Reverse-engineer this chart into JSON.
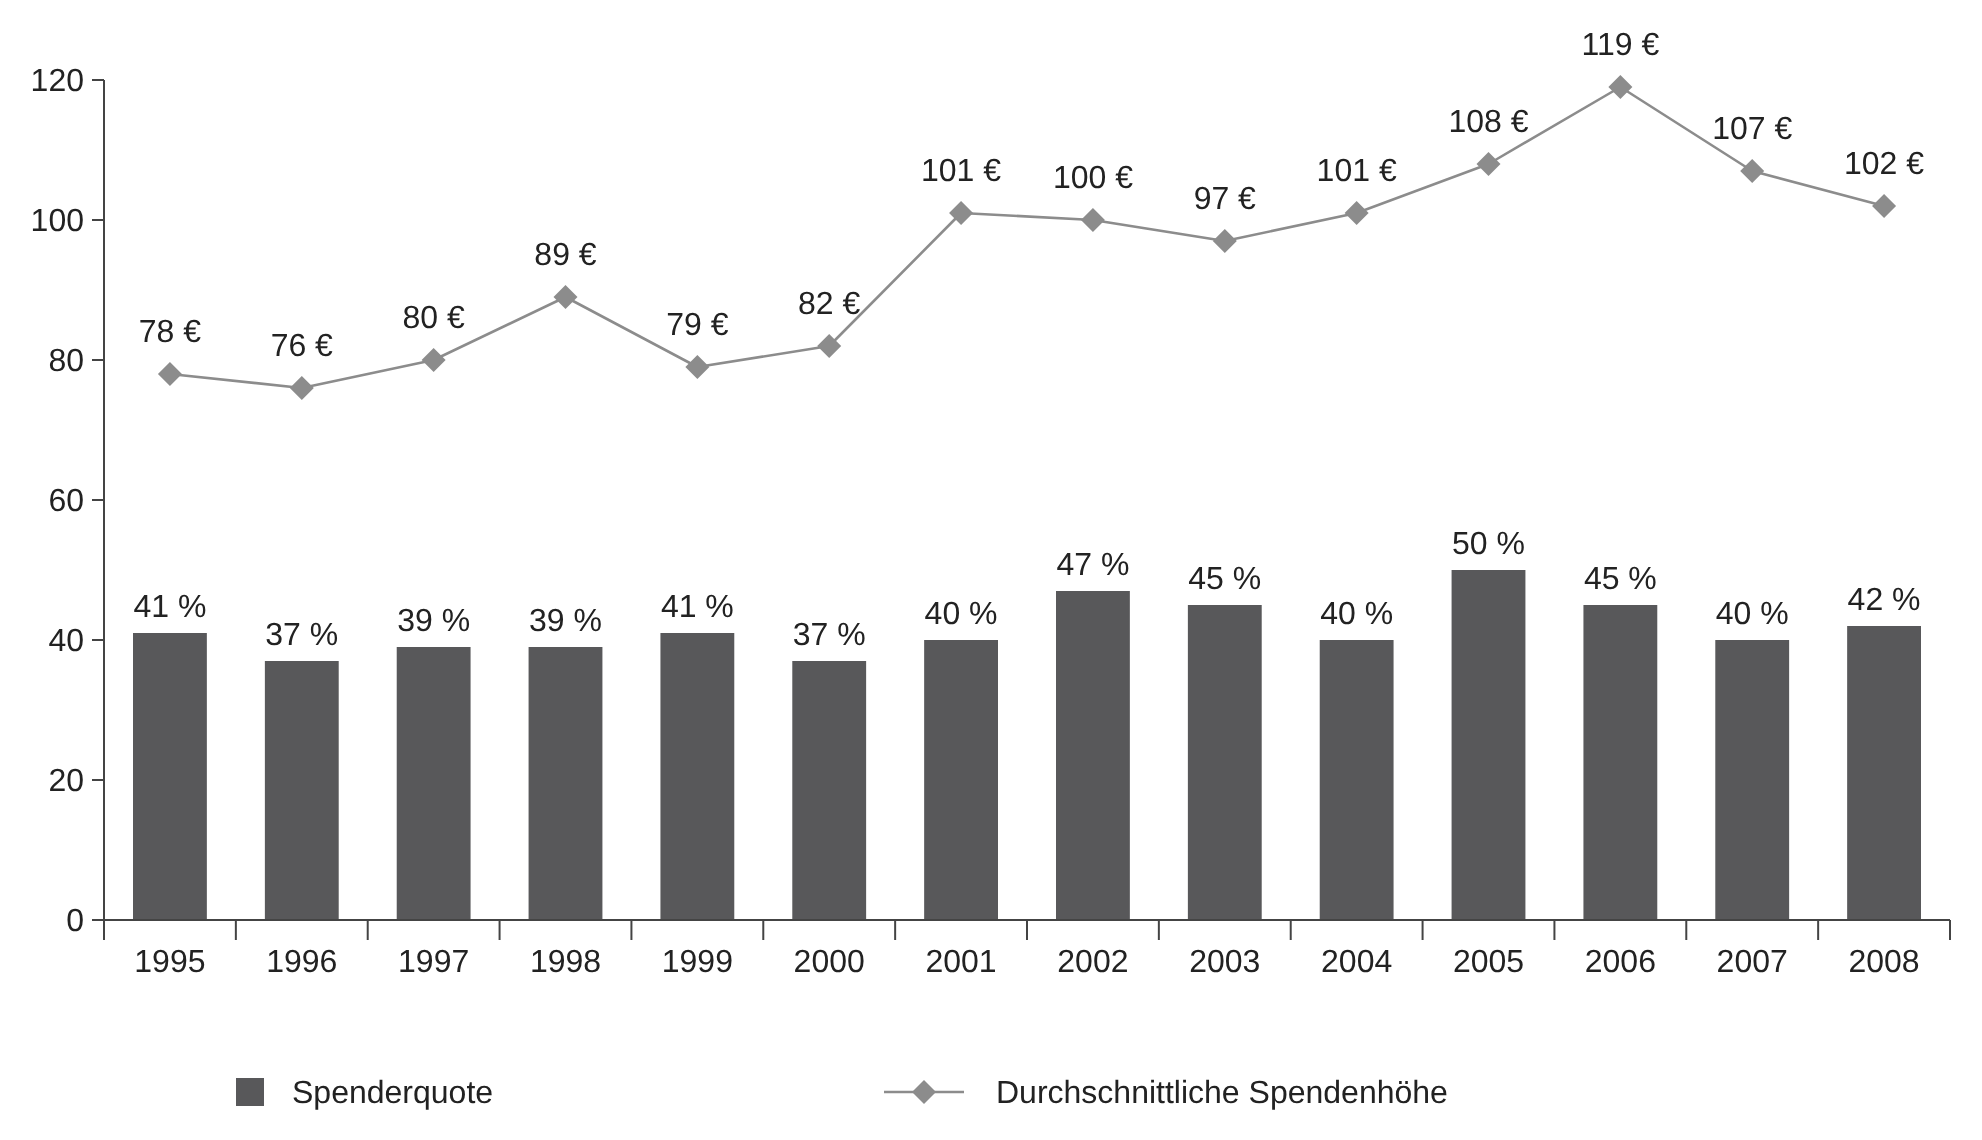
{
  "chart_data": {
    "type": "bar",
    "categories": [
      "1995",
      "1996",
      "1997",
      "1998",
      "1999",
      "2000",
      "2001",
      "2002",
      "2003",
      "2004",
      "2005",
      "2006",
      "2007",
      "2008"
    ],
    "series": [
      {
        "name": "Spenderquote",
        "color": "#58585a",
        "values": [
          41,
          37,
          39,
          39,
          41,
          37,
          40,
          47,
          45,
          40,
          50,
          45,
          40,
          42
        ],
        "value_labels": [
          "41 %",
          "37 %",
          "39 %",
          "39 %",
          "41 %",
          "37 %",
          "40 %",
          "47 %",
          "45 %",
          "40 %",
          "50 %",
          "45 %",
          "40 %",
          "42 %"
        ]
      },
      {
        "name": "Durchschnittliche Spendenhöhe",
        "type": "line",
        "color": "#8c8c8c",
        "marker": "diamond",
        "values": [
          78,
          76,
          80,
          89,
          79,
          82,
          101,
          100,
          97,
          101,
          108,
          119,
          107,
          102
        ],
        "value_labels": [
          "78 €",
          "76 €",
          "80 €",
          "89 €",
          "79 €",
          "82 €",
          "101 €",
          "100 €",
          "97 €",
          "101 €",
          "108 €",
          "119 €",
          "107 €",
          "102 €"
        ]
      }
    ],
    "ylim": [
      0,
      120
    ],
    "yticks": [
      0,
      20,
      40,
      60,
      80,
      100,
      120
    ],
    "legend": "bottom"
  }
}
